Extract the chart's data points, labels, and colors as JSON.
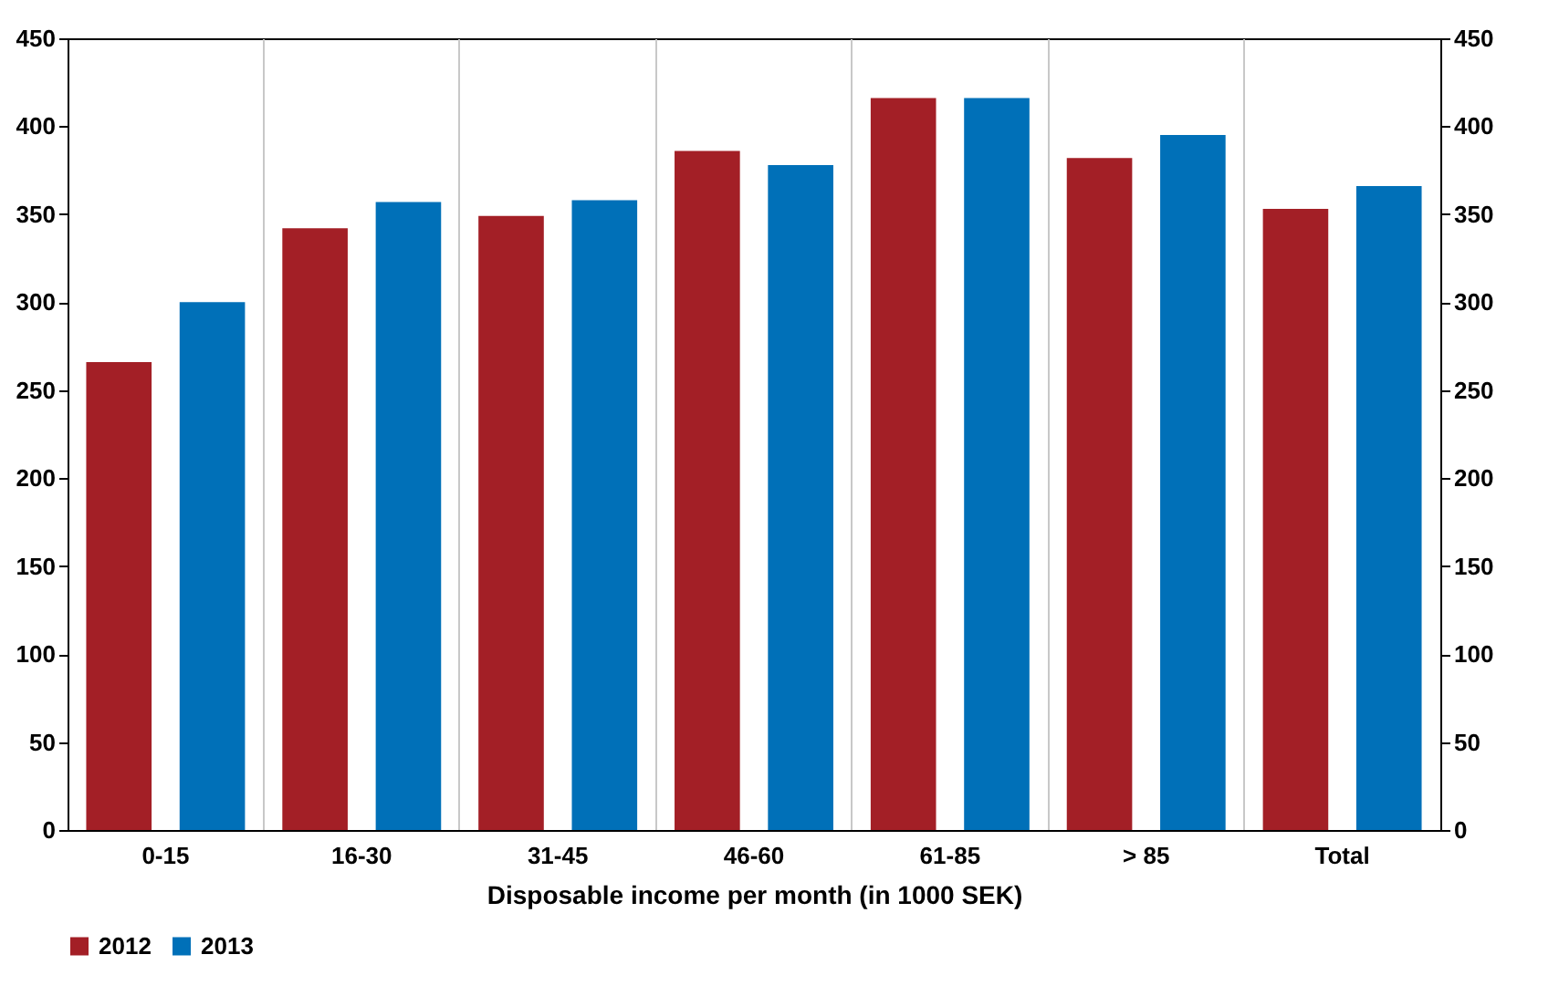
{
  "chart_data": {
    "type": "bar",
    "xlabel": "Disposable income per month (in 1000 SEK)",
    "categories": [
      "0-15",
      "16-30",
      "31-45",
      "46-60",
      "61-85",
      "> 85",
      "Total"
    ],
    "series": [
      {
        "name": "2012",
        "color": "#a31f26",
        "values": [
          266,
          342,
          349,
          386,
          416,
          382,
          353
        ]
      },
      {
        "name": "2013",
        "color": "#0070b8",
        "values": [
          300,
          357,
          358,
          378,
          416,
          395,
          366
        ]
      }
    ],
    "ylim": [
      0,
      450
    ],
    "yticks": [
      0,
      50,
      100,
      150,
      200,
      250,
      300,
      350,
      400,
      450
    ],
    "y2lim": [
      0,
      450
    ],
    "y2ticks": [
      0,
      50,
      100,
      150,
      200,
      250,
      300,
      350,
      400,
      450
    ],
    "grid": "x",
    "legend": "bottom"
  }
}
